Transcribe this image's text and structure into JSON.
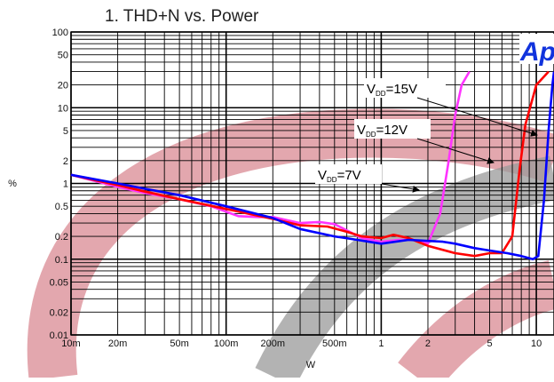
{
  "chart_data": {
    "type": "line",
    "title": "1. THD+N vs. Power",
    "xlabel": "W",
    "ylabel": "%",
    "x_scale": "log",
    "y_scale": "log",
    "xlim": [
      0.01,
      13
    ],
    "ylim": [
      0.01,
      100
    ],
    "grid": true,
    "x_tick_labels": [
      {
        "v": 0.01,
        "t": "10m"
      },
      {
        "v": 0.02,
        "t": "20m"
      },
      {
        "v": 0.05,
        "t": "50m"
      },
      {
        "v": 0.1,
        "t": "100m"
      },
      {
        "v": 0.2,
        "t": "200m"
      },
      {
        "v": 0.5,
        "t": "500m"
      },
      {
        "v": 1,
        "t": "1"
      },
      {
        "v": 2,
        "t": "2"
      },
      {
        "v": 5,
        "t": "5"
      },
      {
        "v": 10,
        "t": "10"
      }
    ],
    "y_tick_labels": [
      {
        "v": 0.01,
        "t": "0.01"
      },
      {
        "v": 0.02,
        "t": "0.02"
      },
      {
        "v": 0.05,
        "t": "0.05"
      },
      {
        "v": 0.1,
        "t": "0.1"
      },
      {
        "v": 0.2,
        "t": "0.2"
      },
      {
        "v": 0.5,
        "t": "0.5"
      },
      {
        "v": 1,
        "t": "1"
      },
      {
        "v": 2,
        "t": "2"
      },
      {
        "v": 5,
        "t": "5"
      },
      {
        "v": 10,
        "t": "10"
      },
      {
        "v": 20,
        "t": "20"
      },
      {
        "v": 50,
        "t": "50"
      },
      {
        "v": 100,
        "t": "100"
      }
    ],
    "series": [
      {
        "name": "VDD=7V",
        "color": "#ff33ff",
        "points": [
          [
            0.01,
            1.3
          ],
          [
            0.015,
            1.05
          ],
          [
            0.02,
            0.9
          ],
          [
            0.03,
            0.75
          ],
          [
            0.05,
            0.62
          ],
          [
            0.08,
            0.5
          ],
          [
            0.12,
            0.37
          ],
          [
            0.16,
            0.36
          ],
          [
            0.2,
            0.36
          ],
          [
            0.3,
            0.3
          ],
          [
            0.4,
            0.31
          ],
          [
            0.5,
            0.29
          ],
          [
            0.6,
            0.24
          ],
          [
            0.75,
            0.19
          ],
          [
            1.0,
            0.17
          ],
          [
            1.3,
            0.18
          ],
          [
            1.6,
            0.18
          ],
          [
            2.0,
            0.16
          ],
          [
            2.4,
            0.4
          ],
          [
            2.7,
            1.8
          ],
          [
            3.0,
            8
          ],
          [
            3.3,
            20
          ],
          [
            3.7,
            30
          ]
        ]
      },
      {
        "name": "VDD=12V",
        "color": "#ff0000",
        "points": [
          [
            0.01,
            1.3
          ],
          [
            0.02,
            0.95
          ],
          [
            0.03,
            0.78
          ],
          [
            0.05,
            0.62
          ],
          [
            0.1,
            0.46
          ],
          [
            0.2,
            0.34
          ],
          [
            0.3,
            0.28
          ],
          [
            0.45,
            0.27
          ],
          [
            0.6,
            0.23
          ],
          [
            0.75,
            0.2
          ],
          [
            1.0,
            0.19
          ],
          [
            1.2,
            0.21
          ],
          [
            1.5,
            0.19
          ],
          [
            2.0,
            0.15
          ],
          [
            3.0,
            0.12
          ],
          [
            4.0,
            0.11
          ],
          [
            5.0,
            0.12
          ],
          [
            6.0,
            0.12
          ],
          [
            7.0,
            0.2
          ],
          [
            7.8,
            1.5
          ],
          [
            8.5,
            6
          ],
          [
            10,
            20
          ],
          [
            12,
            30
          ]
        ]
      },
      {
        "name": "VDD=15V",
        "color": "#0000ff",
        "points": [
          [
            0.01,
            1.3
          ],
          [
            0.02,
            1.0
          ],
          [
            0.03,
            0.85
          ],
          [
            0.05,
            0.7
          ],
          [
            0.1,
            0.5
          ],
          [
            0.2,
            0.35
          ],
          [
            0.3,
            0.25
          ],
          [
            0.5,
            0.2
          ],
          [
            0.7,
            0.18
          ],
          [
            1.0,
            0.16
          ],
          [
            1.5,
            0.18
          ],
          [
            2.5,
            0.17
          ],
          [
            3.0,
            0.16
          ],
          [
            4.0,
            0.14
          ],
          [
            5.0,
            0.13
          ],
          [
            6.5,
            0.12
          ],
          [
            8.0,
            0.11
          ],
          [
            9.5,
            0.1
          ],
          [
            10.3,
            0.11
          ],
          [
            11.2,
            0.6
          ],
          [
            12.0,
            5
          ],
          [
            12.7,
            20
          ],
          [
            13.0,
            30
          ]
        ]
      }
    ],
    "annotations": [
      {
        "base": "V",
        "sub": "DD",
        "rest": "=15V",
        "x": 0.82
      },
      {
        "base": "V",
        "sub": "DD",
        "rest": "=12V",
        "x": 0.9
      },
      {
        "base": "V",
        "sub": "DD",
        "rest": "=7V",
        "x": 0.58
      }
    ],
    "logo_text": "Ap",
    "colors": {
      "grid": "#000000",
      "background": "#ffffff",
      "watermark_pink": "#d98a93",
      "watermark_gray": "#9a9a9a",
      "logo": "#1133dd"
    }
  }
}
